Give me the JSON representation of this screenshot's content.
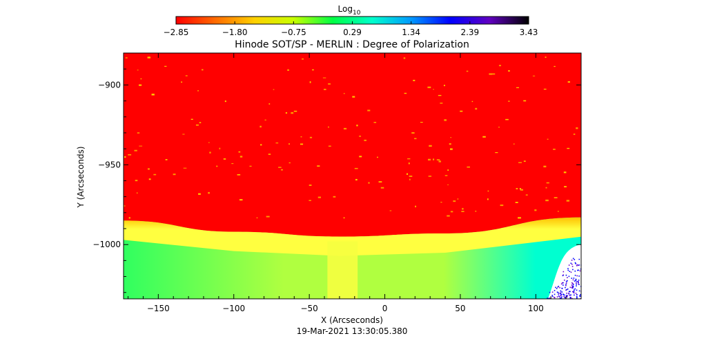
{
  "chart_data": {
    "type": "heatmap",
    "title": "Hinode SOT/SP - MERLIN : Degree of Polarization",
    "xlabel": "X (Arcseconds)",
    "ylabel": "Y (Arcseconds)",
    "timestamp": "19-Mar-2021 13:30:05.380",
    "xlim": [
      -173,
      130
    ],
    "ylim": [
      -1034,
      -880
    ],
    "x_ticks": [
      {
        "value": -150,
        "label": "−150"
      },
      {
        "value": -100,
        "label": "−100"
      },
      {
        "value": -50,
        "label": "−50"
      },
      {
        "value": 0,
        "label": "0"
      },
      {
        "value": 50,
        "label": "50"
      },
      {
        "value": 100,
        "label": "100"
      }
    ],
    "y_ticks": [
      {
        "value": -900,
        "label": "−900"
      },
      {
        "value": -950,
        "label": "−950"
      },
      {
        "value": -1000,
        "label": "−1000"
      }
    ],
    "colorbar": {
      "label_base": "Log",
      "label_sub": "10",
      "min": -2.85,
      "max": 3.43,
      "tick_labels": [
        "−2.85",
        "−1.80",
        "−0.75",
        "0.29",
        "1.34",
        "2.39",
        "3.43"
      ],
      "stops": [
        "#ff0000",
        "#ff6a00",
        "#ffd000",
        "#c8ff00",
        "#00ff44",
        "#00ffcc",
        "#0099ff",
        "#0000ff",
        "#6000c0",
        "#000000"
      ]
    },
    "colors": {
      "disk": "#ff0000",
      "limb": "#ffff40",
      "off_limb": "#b0ff40",
      "off_limb_left": "#30ff60",
      "off_limb_right": "#00ffd0",
      "saturated": "#ffffff",
      "noise": "#0000ff"
    },
    "limb_y": [
      {
        "x": -173,
        "y": -985
      },
      {
        "x": -100,
        "y": -992
      },
      {
        "x": -30,
        "y": -995
      },
      {
        "x": 40,
        "y": -993
      },
      {
        "x": 130,
        "y": -983
      }
    ]
  }
}
